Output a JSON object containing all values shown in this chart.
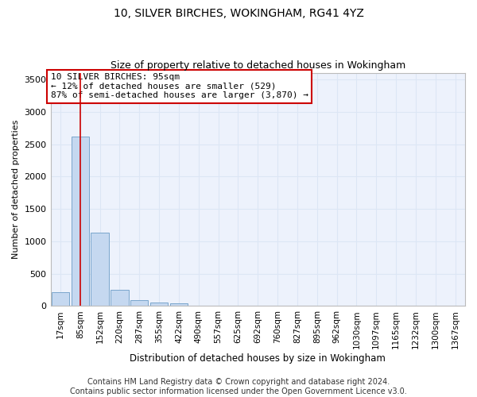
{
  "title1": "10, SILVER BIRCHES, WOKINGHAM, RG41 4YZ",
  "title2": "Size of property relative to detached houses in Wokingham",
  "xlabel": "Distribution of detached houses by size in Wokingham",
  "ylabel": "Number of detached properties",
  "categories": [
    "17sqm",
    "85sqm",
    "152sqm",
    "220sqm",
    "287sqm",
    "355sqm",
    "422sqm",
    "490sqm",
    "557sqm",
    "625sqm",
    "692sqm",
    "760sqm",
    "827sqm",
    "895sqm",
    "962sqm",
    "1030sqm",
    "1097sqm",
    "1165sqm",
    "1232sqm",
    "1300sqm",
    "1367sqm"
  ],
  "values": [
    215,
    2620,
    1130,
    255,
    95,
    55,
    35,
    0,
    0,
    0,
    0,
    0,
    0,
    0,
    0,
    0,
    0,
    0,
    0,
    0,
    0
  ],
  "bar_color": "#c5d8f0",
  "bar_edge_color": "#7aa6cc",
  "vline_x_idx": 1,
  "vline_color": "#cc0000",
  "annotation_text": "10 SILVER BIRCHES: 95sqm\n← 12% of detached houses are smaller (529)\n87% of semi-detached houses are larger (3,870) →",
  "annotation_box_color": "#ffffff",
  "annotation_box_edge_color": "#cc0000",
  "ylim": [
    0,
    3600
  ],
  "yticks": [
    0,
    500,
    1000,
    1500,
    2000,
    2500,
    3000,
    3500
  ],
  "grid_color": "#dce6f5",
  "bg_color": "#edf2fc",
  "title1_fontsize": 10,
  "title2_fontsize": 9,
  "xlabel_fontsize": 8.5,
  "ylabel_fontsize": 8,
  "footer_text": "Contains HM Land Registry data © Crown copyright and database right 2024.\nContains public sector information licensed under the Open Government Licence v3.0.",
  "footer_fontsize": 7
}
